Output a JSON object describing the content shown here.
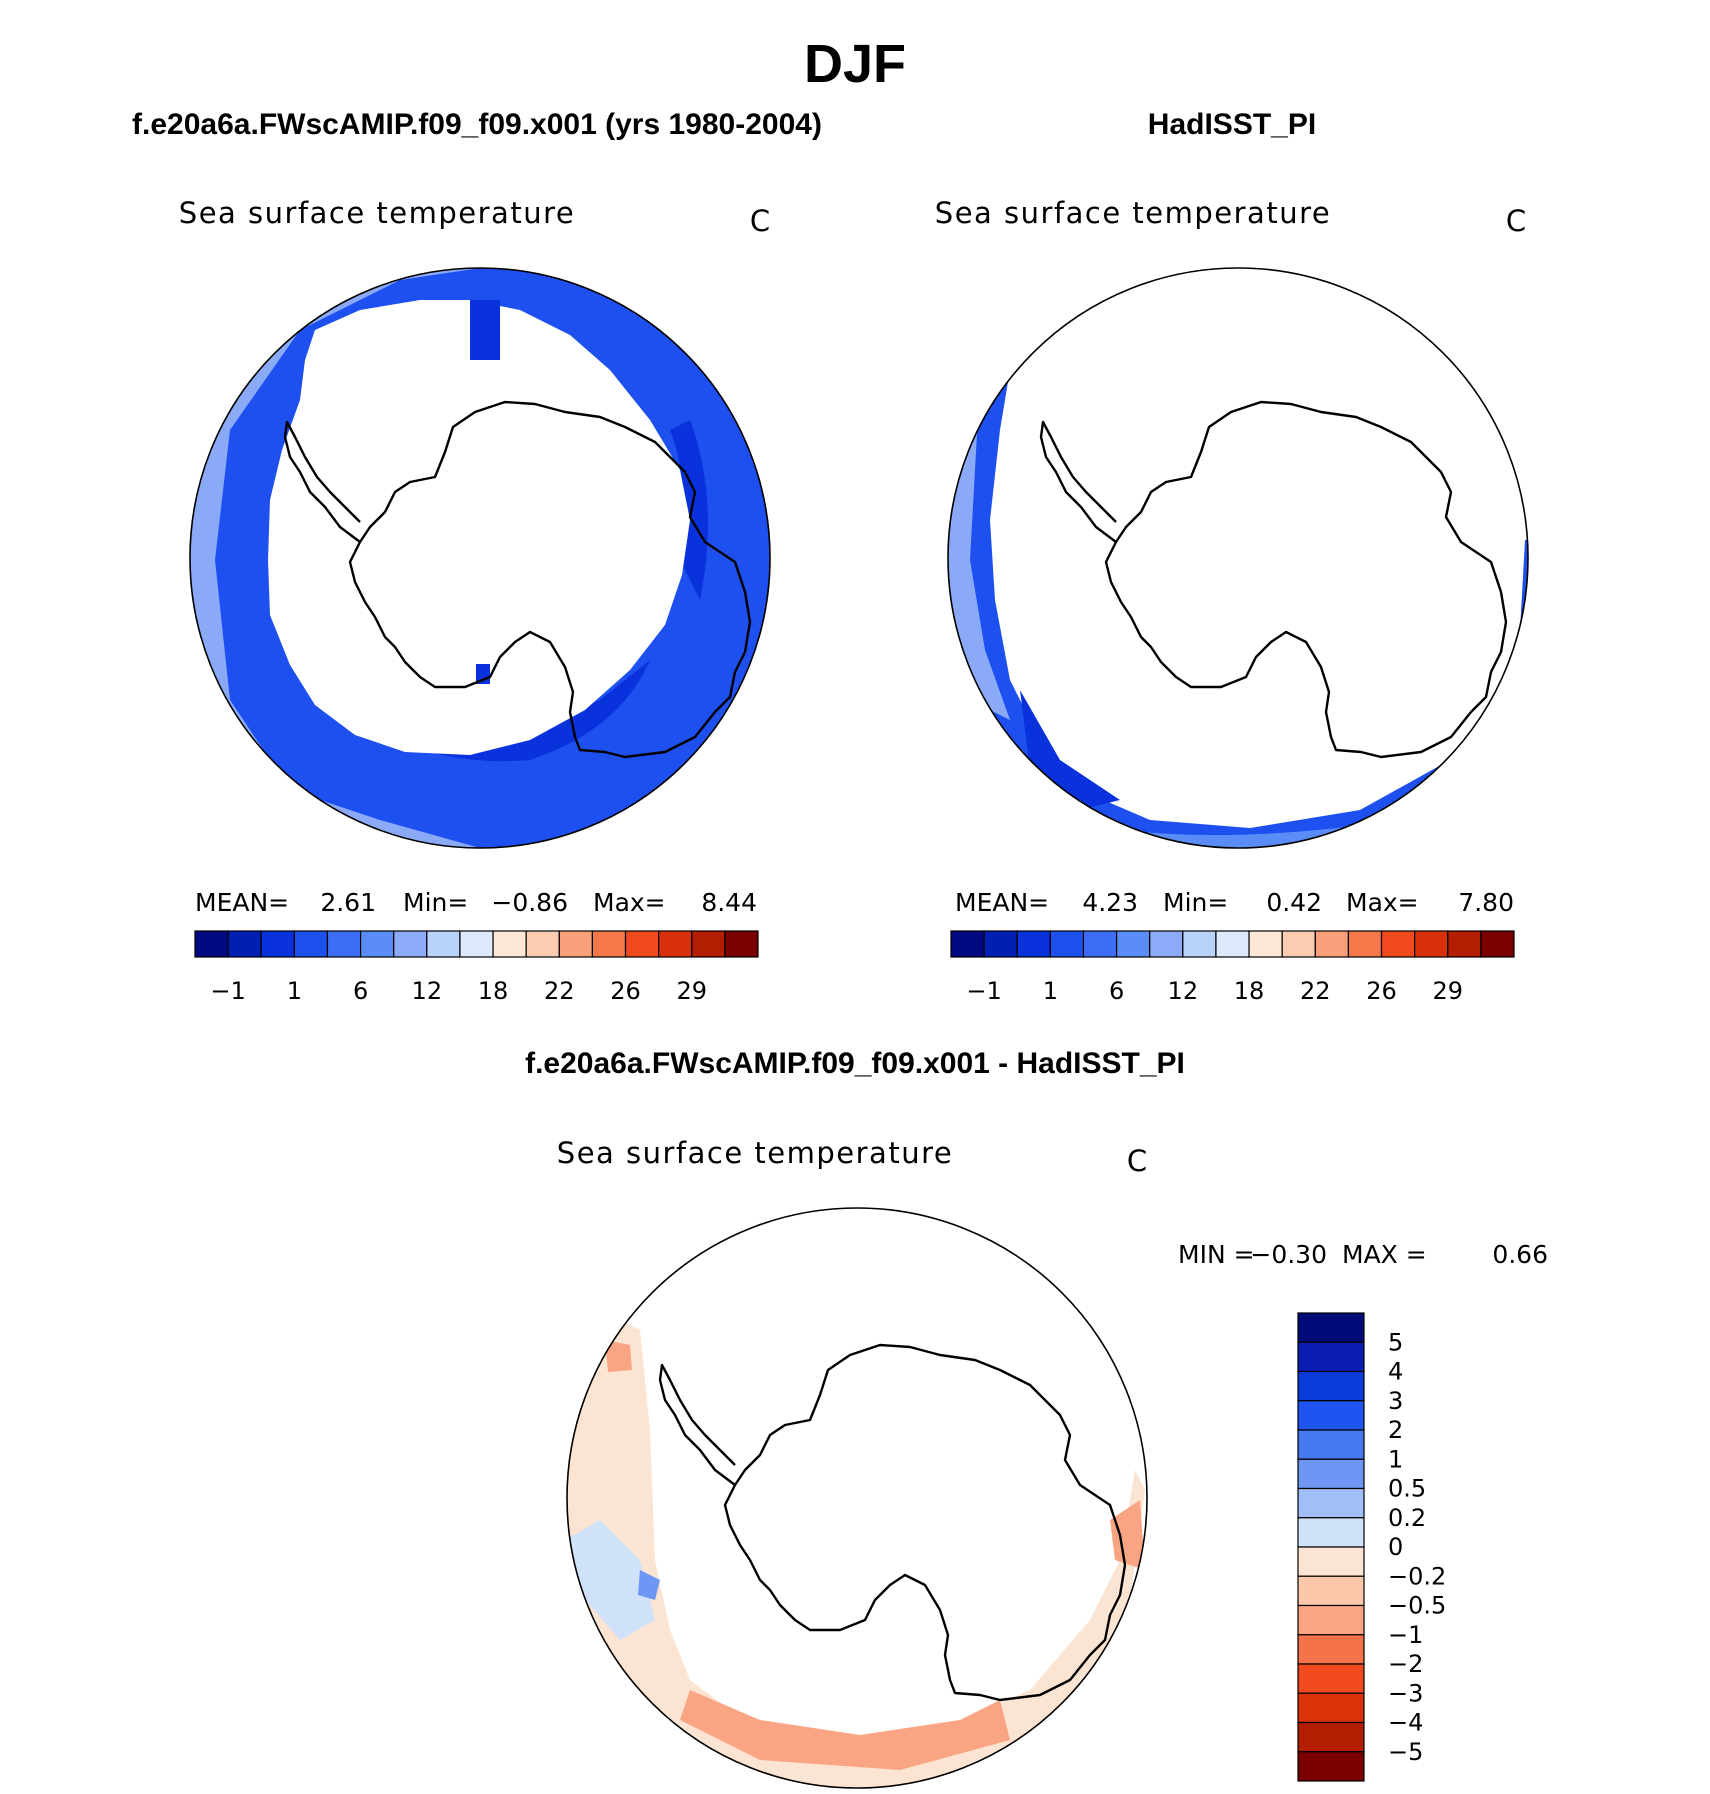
{
  "figure": {
    "title": "DJF",
    "panels": [
      {
        "id": "model",
        "header": "f.e20a6a.FWscAMIP.f09_f09.x001 (yrs 1980-2004)",
        "variable": "Sea surface temperature",
        "units": "C",
        "mean_label": "MEAN=",
        "mean": "2.61",
        "min_label": "Min=",
        "min": "−0.86",
        "max_label": "Max=",
        "max": "8.44"
      },
      {
        "id": "obs",
        "header": "HadISST_PI",
        "variable": "Sea surface temperature",
        "units": "C",
        "mean_label": "MEAN=",
        "mean": "4.23",
        "min_label": "Min=",
        "min": "0.42",
        "max_label": "Max=",
        "max": "7.80"
      }
    ],
    "diff": {
      "header": "f.e20a6a.FWscAMIP.f09_f09.x001 - HadISST_PI",
      "variable": "Sea surface temperature",
      "units": "C",
      "min_label": "MIN =",
      "min": "−0.30",
      "max_label": "MAX =",
      "max": "0.66"
    }
  },
  "chart_data": [
    {
      "type": "map",
      "projection": "south-polar-stereographic",
      "title": "Sea surface temperature",
      "units": "C",
      "colorbar": {
        "orientation": "horizontal",
        "colors": [
          "#000a80",
          "#0020b4",
          "#0a32dc",
          "#1e50f0",
          "#3c6ef5",
          "#5a8cf8",
          "#8caaf8",
          "#b9d2fa",
          "#dceafc",
          "#fde8d8",
          "#fccbb0",
          "#f9a07a",
          "#f5784b",
          "#f04a1e",
          "#d8300a",
          "#b41e00",
          "#7a0000"
        ],
        "tick_labels": [
          "−1",
          "1",
          "6",
          "12",
          "18",
          "22",
          "26",
          "29"
        ]
      },
      "stats": {
        "mean": 2.61,
        "min": -0.86,
        "max": 8.44
      }
    },
    {
      "type": "map",
      "projection": "south-polar-stereographic",
      "title": "Sea surface temperature",
      "units": "C",
      "colorbar": {
        "orientation": "horizontal",
        "colors": [
          "#000a80",
          "#0020b4",
          "#0a32dc",
          "#1e50f0",
          "#3c6ef5",
          "#5a8cf8",
          "#8caaf8",
          "#b9d2fa",
          "#dceafc",
          "#fde8d8",
          "#fccbb0",
          "#f9a07a",
          "#f5784b",
          "#f04a1e",
          "#d8300a",
          "#b41e00",
          "#7a0000"
        ],
        "tick_labels": [
          "−1",
          "1",
          "6",
          "12",
          "18",
          "22",
          "26",
          "29"
        ]
      },
      "stats": {
        "mean": 4.23,
        "min": 0.42,
        "max": 7.8
      }
    },
    {
      "type": "map",
      "projection": "south-polar-stereographic",
      "title": "Sea surface temperature",
      "units": "C",
      "colorbar": {
        "orientation": "vertical",
        "colors": [
          "#000a78",
          "#0a1eb4",
          "#0a3cdc",
          "#1e55f0",
          "#4678f0",
          "#6e96f5",
          "#a0bef8",
          "#cfe2fa",
          "#fce4d2",
          "#fbc8ac",
          "#f9a482",
          "#f5734b",
          "#f04a1e",
          "#dc320a",
          "#b41e00",
          "#7a0000"
        ],
        "tick_labels": [
          "5",
          "4",
          "3",
          "2",
          "1",
          "0.5",
          "0.2",
          "0",
          "−0.2",
          "−0.5",
          "−1",
          "−2",
          "−3",
          "−4",
          "−5"
        ]
      },
      "stats": {
        "min": -0.3,
        "max": 0.66
      }
    }
  ]
}
